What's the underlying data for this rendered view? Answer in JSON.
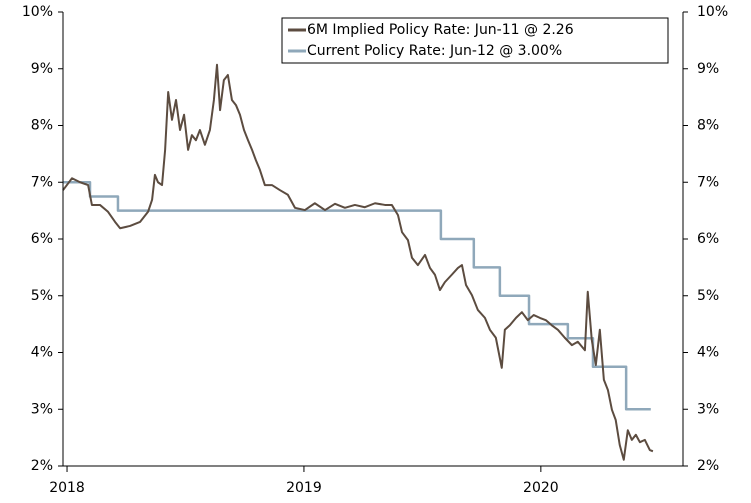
{
  "chart_data": {
    "type": "line",
    "xlim": [
      2017.983,
      2020.6
    ],
    "xticks": [
      2018,
      2019,
      2020
    ],
    "ylim": [
      2,
      10
    ],
    "yticks": [
      {
        "value": 2,
        "label": "2%"
      },
      {
        "value": 3,
        "label": "3%"
      },
      {
        "value": 4,
        "label": "4%"
      },
      {
        "value": 5,
        "label": "5%"
      },
      {
        "value": 6,
        "label": "6%"
      },
      {
        "value": 7,
        "label": "7%"
      },
      {
        "value": 8,
        "label": "8%"
      },
      {
        "value": 9,
        "label": "9%"
      },
      {
        "value": 10,
        "label": "10%"
      }
    ],
    "y2lim": [
      2,
      10
    ],
    "y2ticks": [
      {
        "value": 2,
        "label": "2%"
      },
      {
        "value": 3,
        "label": "3%"
      },
      {
        "value": 4,
        "label": "4%"
      },
      {
        "value": 5,
        "label": "5%"
      },
      {
        "value": 6,
        "label": "6%"
      },
      {
        "value": 7,
        "label": "7%"
      },
      {
        "value": 8,
        "label": "8%"
      },
      {
        "value": 9,
        "label": "9%"
      },
      {
        "value": 10,
        "label": "10%"
      }
    ],
    "legend": "upper right",
    "series": [
      {
        "name": "6M Implied Policy Rate: Jun-11 @ 2.26",
        "color": "#5c4c40",
        "x": [
          2017.983,
          2018.021,
          2018.055,
          2018.089,
          2018.105,
          2018.139,
          2018.173,
          2018.203,
          2018.224,
          2018.266,
          2018.308,
          2018.342,
          2018.359,
          2018.371,
          2018.384,
          2018.401,
          2018.414,
          2018.427,
          2018.443,
          2018.46,
          2018.477,
          2018.494,
          2018.511,
          2018.527,
          2018.544,
          2018.561,
          2018.582,
          2018.603,
          2018.62,
          2018.633,
          2018.646,
          2018.662,
          2018.679,
          2018.696,
          2018.713,
          2018.73,
          2018.747,
          2018.764,
          2018.781,
          2018.797,
          2018.814,
          2018.835,
          2018.865,
          2018.899,
          2018.932,
          2018.962,
          2019.004,
          2019.046,
          2019.089,
          2019.131,
          2019.173,
          2019.215,
          2019.257,
          2019.3,
          2019.342,
          2019.371,
          2019.397,
          2019.414,
          2019.439,
          2019.456,
          2019.481,
          2019.511,
          2019.532,
          2019.553,
          2019.574,
          2019.595,
          2019.624,
          2019.65,
          2019.667,
          2019.684,
          2019.709,
          2019.734,
          2019.764,
          2019.785,
          2019.81,
          2019.835,
          2019.848,
          2019.869,
          2019.895,
          2019.92,
          2019.945,
          2019.97,
          2019.996,
          2020.021,
          2020.046,
          2020.072,
          2020.101,
          2020.131,
          2020.156,
          2020.186,
          2020.198,
          2020.215,
          2020.232,
          2020.249,
          2020.266,
          2020.283,
          2020.3,
          2020.316,
          2020.333,
          2020.35,
          2020.367,
          2020.384,
          2020.401,
          2020.418,
          2020.439,
          2020.46,
          2020.473
        ],
        "values": [
          6.86,
          7.07,
          7.0,
          6.95,
          6.6,
          6.6,
          6.48,
          6.3,
          6.19,
          6.23,
          6.3,
          6.48,
          6.69,
          7.13,
          7.0,
          6.95,
          7.57,
          8.59,
          8.1,
          8.45,
          7.92,
          8.19,
          7.57,
          7.83,
          7.74,
          7.92,
          7.66,
          7.92,
          8.45,
          9.07,
          8.27,
          8.8,
          8.89,
          8.45,
          8.36,
          8.19,
          7.92,
          7.74,
          7.57,
          7.39,
          7.22,
          6.95,
          6.95,
          6.86,
          6.78,
          6.55,
          6.51,
          6.63,
          6.51,
          6.62,
          6.55,
          6.6,
          6.56,
          6.63,
          6.6,
          6.6,
          6.42,
          6.12,
          5.98,
          5.67,
          5.54,
          5.72,
          5.49,
          5.37,
          5.1,
          5.24,
          5.37,
          5.49,
          5.54,
          5.19,
          5.01,
          4.75,
          4.61,
          4.4,
          4.26,
          3.73,
          4.4,
          4.48,
          4.61,
          4.71,
          4.57,
          4.66,
          4.61,
          4.57,
          4.48,
          4.4,
          4.26,
          4.13,
          4.19,
          4.04,
          5.07,
          4.22,
          3.78,
          4.4,
          3.52,
          3.34,
          2.99,
          2.81,
          2.37,
          2.11,
          2.63,
          2.46,
          2.55,
          2.42,
          2.46,
          2.28,
          2.26
        ]
      },
      {
        "name": "Current Policy Rate: Jun-12 @ 3.00%",
        "color": "#8fa8ba",
        "x": [
          2017.983,
          2018.097,
          2018.097,
          2018.215,
          2018.215,
          2019.578,
          2019.578,
          2019.717,
          2019.717,
          2019.827,
          2019.827,
          2019.95,
          2019.95,
          2020.114,
          2020.114,
          2020.22,
          2020.22,
          2020.36,
          2020.36,
          2020.464
        ],
        "values": [
          7.0,
          7.0,
          6.75,
          6.75,
          6.5,
          6.5,
          6.0,
          6.0,
          5.5,
          5.5,
          5.0,
          5.0,
          4.5,
          4.5,
          4.25,
          4.25,
          3.75,
          3.75,
          3.0,
          3.0
        ]
      }
    ]
  }
}
